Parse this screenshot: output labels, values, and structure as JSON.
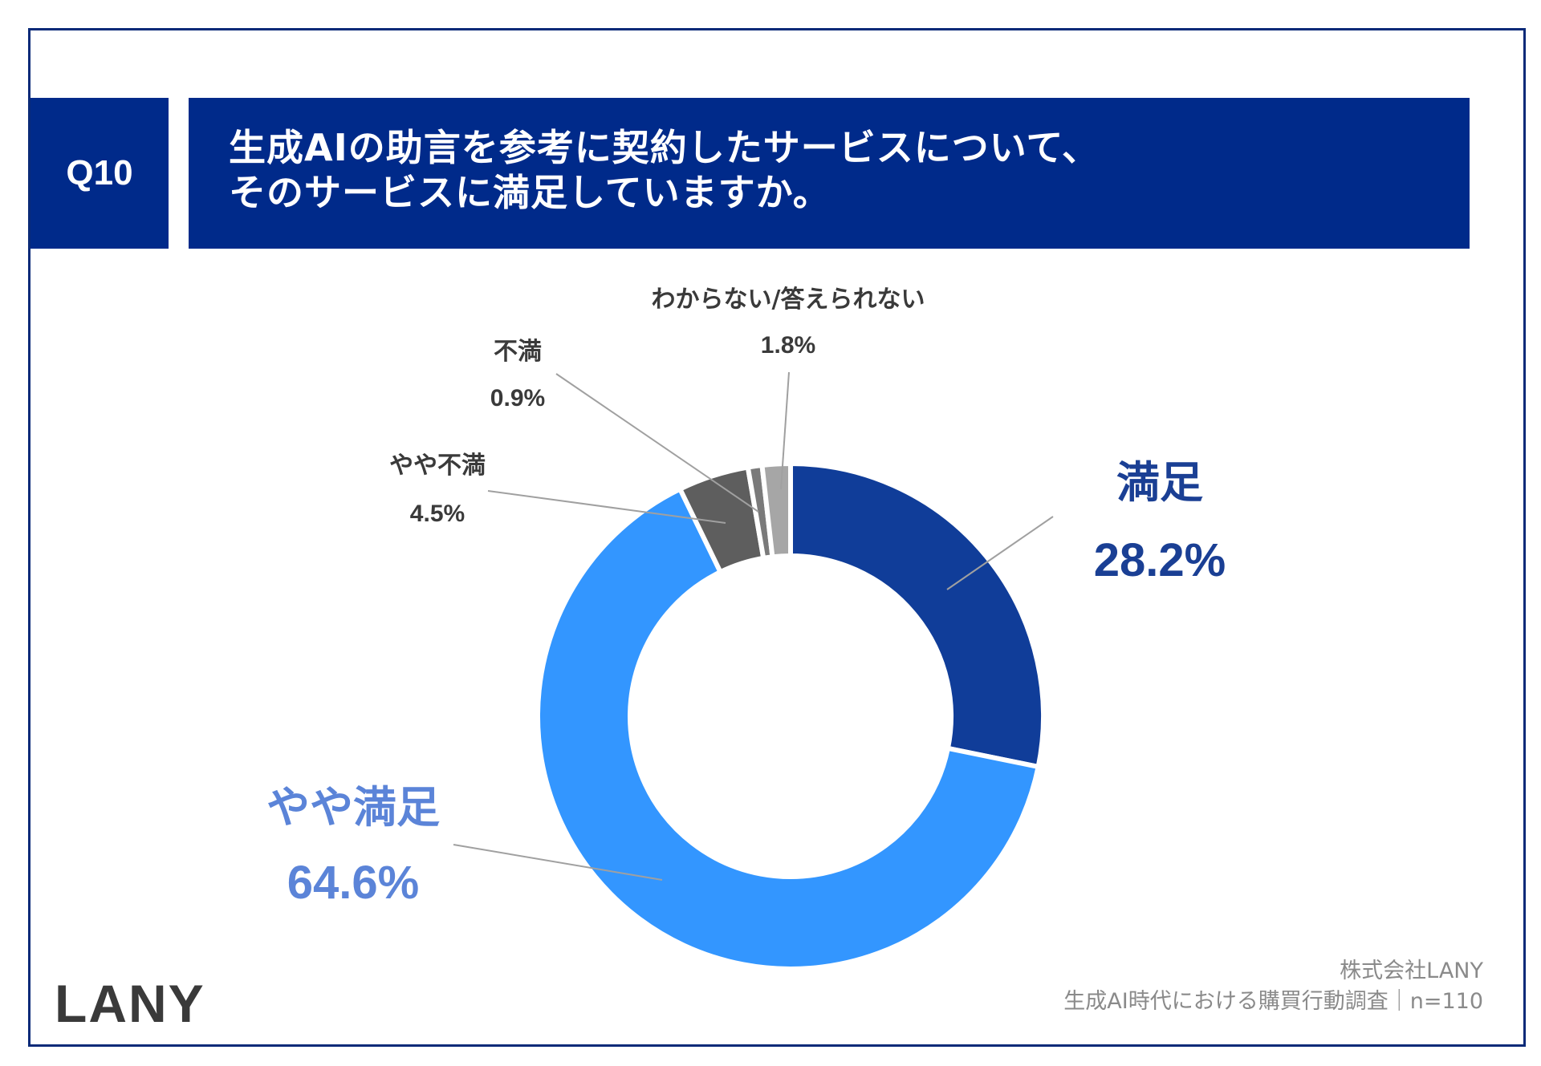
{
  "question": {
    "number": "Q10",
    "title_lines": [
      "生成AIの助言を参考に契約したサービスについて、",
      "そのサービスに満足していますか。"
    ]
  },
  "chart_data": {
    "type": "pie",
    "variant": "donut",
    "slices": [
      {
        "label": "満足",
        "value": 28.2,
        "value_label": "28.2%",
        "color": "#103d99",
        "text_color": "#1a3f94"
      },
      {
        "label": "やや満足",
        "value": 64.6,
        "value_label": "64.6%",
        "color": "#3396ff",
        "text_color": "#5b84d8"
      },
      {
        "label": "やや不満",
        "value": 4.5,
        "value_label": "4.5%",
        "color": "#5e5e5e",
        "text_color": "#3a3a3a"
      },
      {
        "label": "不満",
        "value": 0.9,
        "value_label": "0.9%",
        "color": "#7a7a7a",
        "text_color": "#3a3a3a"
      },
      {
        "label": "わからない/答えられない",
        "value": 1.8,
        "value_label": "1.8%",
        "color": "#a6a6a6",
        "text_color": "#3a3a3a"
      }
    ],
    "legend": "none"
  },
  "footer": {
    "company": "株式会社LANY",
    "survey": "生成AI時代における購買行動調査｜n=110"
  },
  "logo": "LANY"
}
